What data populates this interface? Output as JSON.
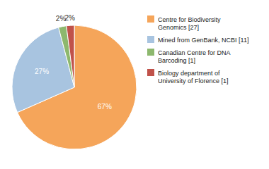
{
  "chart_data": {
    "type": "pie",
    "categories": [
      "Centre for Biodiversity\nGenomics [27]",
      "Mined from GenBank, NCBI [11]",
      "Canadian Centre for DNA\nBarcoding [1]",
      "Biology department of\nUniversity of Florence [1]"
    ],
    "values": [
      67,
      27,
      2,
      2
    ],
    "value_labels": [
      "67%",
      "27%",
      "2%",
      "2%"
    ],
    "colors": [
      "#F5A55A",
      "#A8C4E0",
      "#8DB86E",
      "#C0524A"
    ],
    "data_labels": true,
    "legend": "right"
  }
}
